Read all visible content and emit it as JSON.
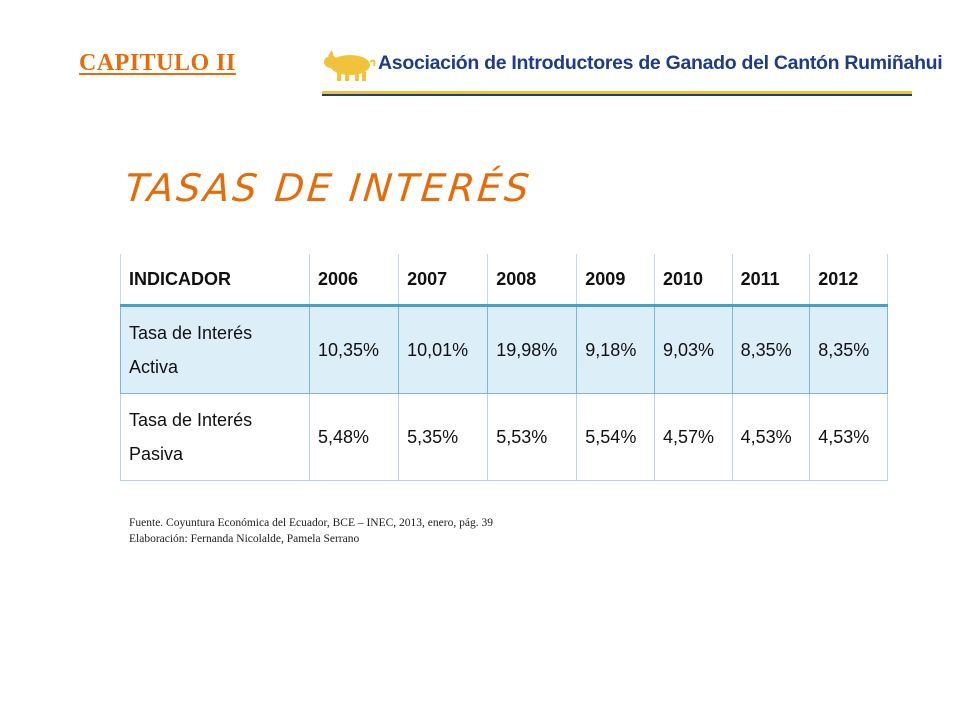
{
  "header": {
    "chapter": "CAPITULO II",
    "logo_text": "Asociación de Introductores de Ganado del Cantón Rumiñahui"
  },
  "title": "TASAS DE INTERÉS",
  "table": {
    "headers": [
      "INDICADOR",
      "2006",
      "2007",
      "2008",
      "2009",
      "2010",
      "2011",
      "2012"
    ],
    "rows": [
      {
        "label_line1": "Tasa de Interés",
        "label_line2": "Activa",
        "values": [
          "10,35%",
          "10,01%",
          "19,98%",
          "9,18%",
          "9,03%",
          "8,35%",
          "8,35%"
        ]
      },
      {
        "label_line1": "Tasa de Interés",
        "label_line2": "Pasiva",
        "values": [
          "5,48%",
          "5,35%",
          "5,53%",
          "5,54%",
          "4,57%",
          "4,53%",
          "4,53%"
        ]
      }
    ]
  },
  "footnote": {
    "source": "Fuente. Coyuntura Económica del Ecuador, BCE – INEC, 2013, enero, pág. 39",
    "elaboration": "Elaboración: Fernanda Nicolalde, Pamela Serrano"
  },
  "colors": {
    "accent_orange": "#e46c0a",
    "logo_blue": "#1f3c88",
    "logo_yellow": "#f2c23a",
    "table_row_fill": "#dceef8",
    "table_border": "#4a9fc7"
  }
}
